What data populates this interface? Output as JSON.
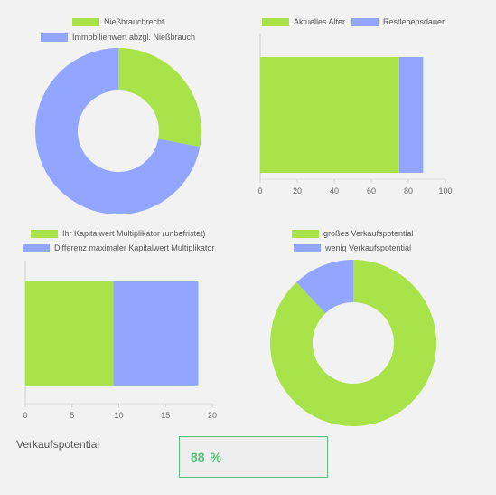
{
  "colors": {
    "green": "#a8e34a",
    "blue": "#93a6ff",
    "accent": "#58c27d"
  },
  "chart_data": [
    {
      "type": "pie",
      "variant": "doughnut",
      "legend": [
        "Nießbrauchrecht",
        "Immobilienwert abzgl. Nießbrauch"
      ],
      "values": [
        28,
        72
      ],
      "colors": [
        "#a8e34a",
        "#93a6ff"
      ]
    },
    {
      "type": "bar",
      "orientation": "horizontal",
      "stacked": true,
      "series": [
        {
          "name": "Aktuelles Alter",
          "values": [
            75
          ],
          "color": "#a8e34a"
        },
        {
          "name": "Restlebensdauer",
          "values": [
            13
          ],
          "color": "#93a6ff"
        }
      ],
      "xticks": [
        "0",
        "20",
        "40",
        "60",
        "80",
        "100"
      ],
      "xlim": [
        0,
        100
      ]
    },
    {
      "type": "bar",
      "orientation": "horizontal",
      "stacked": true,
      "series": [
        {
          "name": "Ihr Kapitalwert Multiplikator (unbefristet)",
          "values": [
            9.4
          ],
          "color": "#a8e34a"
        },
        {
          "name": "Differenz maximaler Kapitalwert Multiplikator",
          "values": [
            9.1
          ],
          "color": "#93a6ff"
        }
      ],
      "xticks": [
        "0",
        "5",
        "10",
        "15",
        "20"
      ],
      "xlim": [
        0,
        20
      ]
    },
    {
      "type": "pie",
      "variant": "doughnut",
      "legend": [
        "großes Verkaufspotential",
        "wenig Verkaufspotential"
      ],
      "values": [
        88,
        12
      ],
      "colors": [
        "#a8e34a",
        "#93a6ff"
      ]
    }
  ],
  "footer": {
    "caption": "Verkaufspotential",
    "value": "88",
    "unit": "%"
  }
}
